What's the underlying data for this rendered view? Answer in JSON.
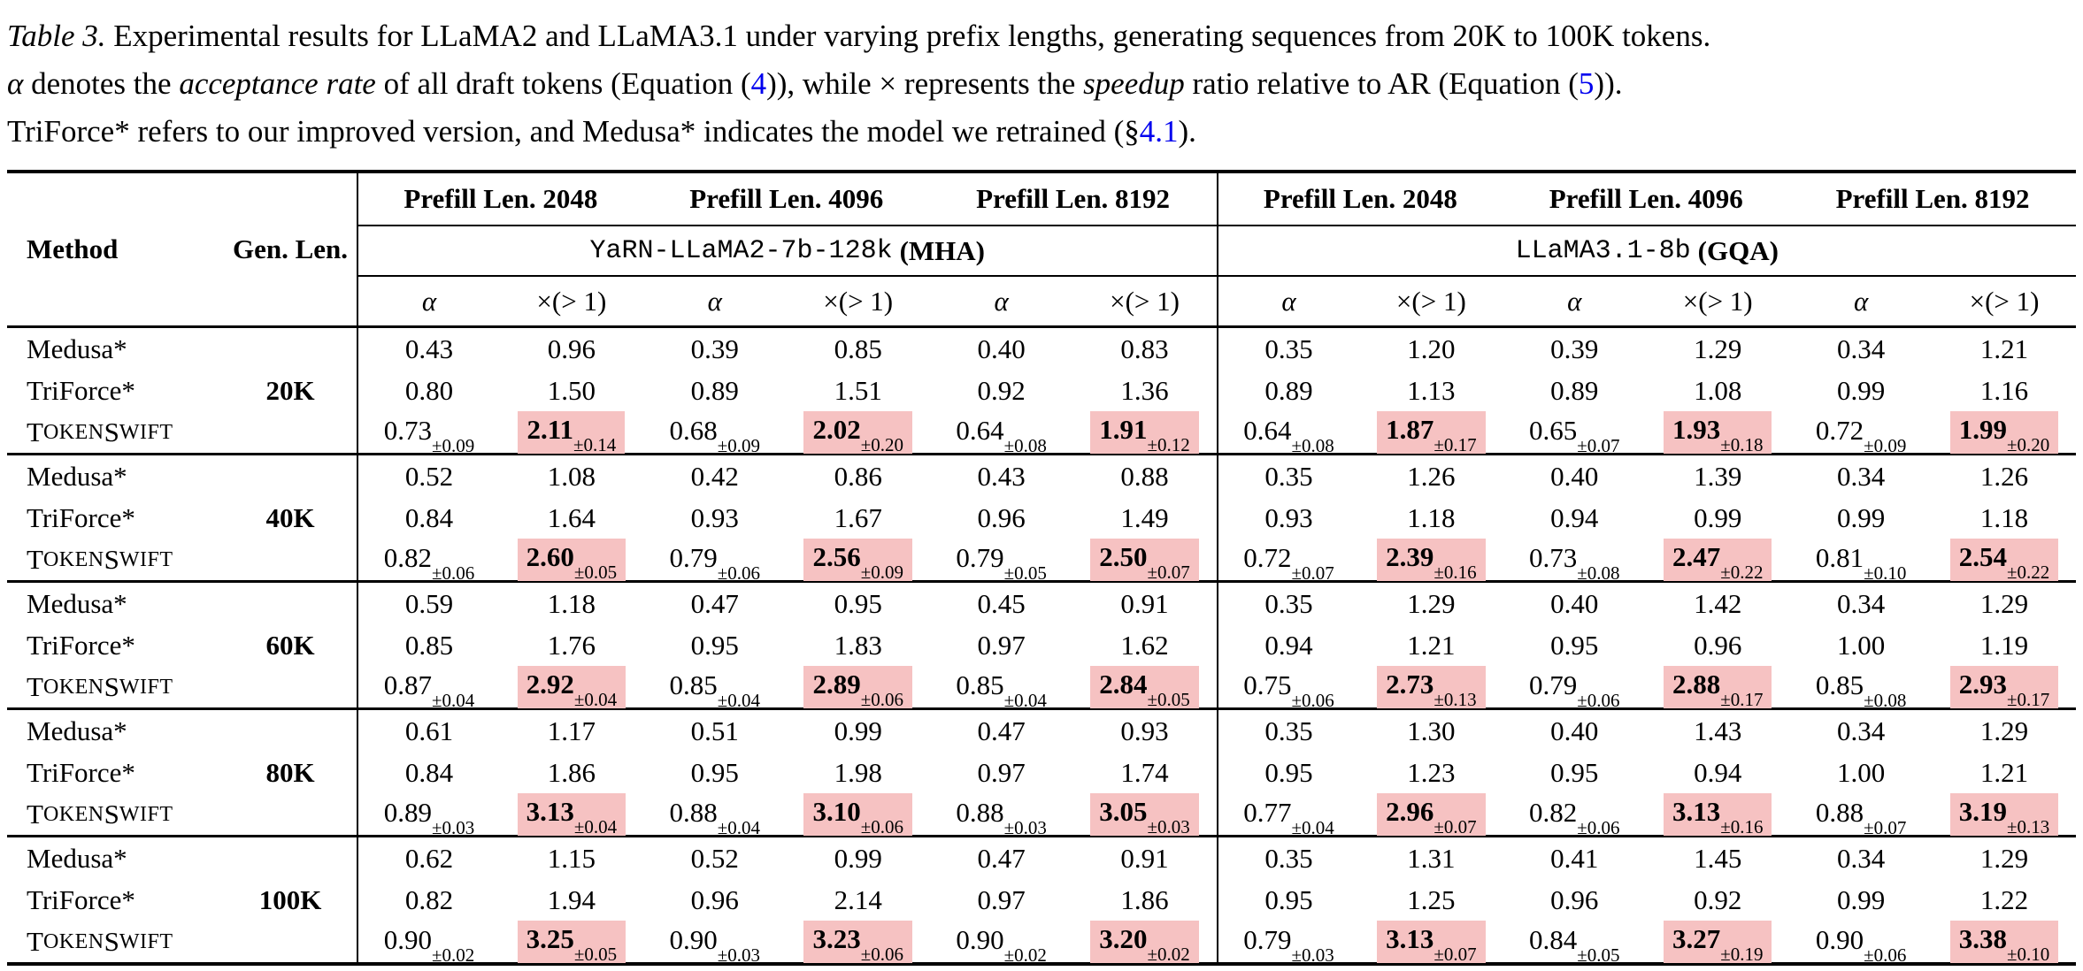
{
  "caption": {
    "lines": [
      [
        {
          "t": "Table 3.",
          "s": "i"
        },
        {
          "t": " Experimental results for LLaMA2 and LLaMA3.1 under varying prefix lengths, generating sequences from 20K to 100K tokens.",
          "s": "n"
        }
      ],
      [
        {
          "t": "α",
          "s": "i"
        },
        {
          "t": " denotes the ",
          "s": "n"
        },
        {
          "t": "acceptance rate",
          "s": "i"
        },
        {
          "t": " of all draft tokens (Equation (",
          "s": "n"
        },
        {
          "t": "4",
          "s": "l"
        },
        {
          "t": ")), while × represents the ",
          "s": "n"
        },
        {
          "t": "speedup",
          "s": "i"
        },
        {
          "t": " ratio relative to AR (Equation (",
          "s": "n"
        },
        {
          "t": "5",
          "s": "l"
        },
        {
          "t": ")).",
          "s": "n"
        }
      ],
      [
        {
          "t": "TriForce* refers to our improved version, and Medusa* indicates the model we retrained (§",
          "s": "n"
        },
        {
          "t": "4.1",
          "s": "l"
        },
        {
          "t": ").",
          "s": "n"
        }
      ]
    ]
  },
  "table": {
    "header": {
      "method": "Method",
      "gen_len": "Gen. Len.",
      "prefill": [
        "Prefill Len. 2048",
        "Prefill Len. 4096",
        "Prefill Len. 8192",
        "Prefill Len. 2048",
        "Prefill Len. 4096",
        "Prefill Len. 8192"
      ],
      "model_left": {
        "name": "YaRN-LLaMA2-7b-128k",
        "suffix": "(MHA)"
      },
      "model_right": {
        "name": "LLaMA3.1-8b",
        "suffix": "(GQA)"
      },
      "alpha": "α",
      "speedup": "×(> 1)"
    },
    "groups": [
      {
        "gen_len": "20K",
        "rows": [
          {
            "method": "Medusa*",
            "values": [
              "0.43",
              "0.96",
              "0.39",
              "0.85",
              "0.40",
              "0.83",
              "0.35",
              "1.20",
              "0.39",
              "1.29",
              "0.34",
              "1.21"
            ]
          },
          {
            "method": "TriForce*",
            "values": [
              "0.80",
              "1.50",
              "0.89",
              "1.51",
              "0.92",
              "1.36",
              "0.89",
              "1.13",
              "0.89",
              "1.08",
              "0.99",
              "1.16"
            ]
          },
          {
            "method": "TokenSwift",
            "sc": true,
            "values": [
              {
                "v": "0.73",
                "sub": "±0.09"
              },
              {
                "v": "2.11",
                "sub": "±0.14",
                "hl": true
              },
              {
                "v": "0.68",
                "sub": "±0.09"
              },
              {
                "v": "2.02",
                "sub": "±0.20",
                "hl": true
              },
              {
                "v": "0.64",
                "sub": "±0.08"
              },
              {
                "v": "1.91",
                "sub": "±0.12",
                "hl": true
              },
              {
                "v": "0.64",
                "sub": "±0.08"
              },
              {
                "v": "1.87",
                "sub": "±0.17",
                "hl": true
              },
              {
                "v": "0.65",
                "sub": "±0.07"
              },
              {
                "v": "1.93",
                "sub": "±0.18",
                "hl": true
              },
              {
                "v": "0.72",
                "sub": "±0.09"
              },
              {
                "v": "1.99",
                "sub": "±0.20",
                "hl": true
              }
            ]
          }
        ]
      },
      {
        "gen_len": "40K",
        "rows": [
          {
            "method": "Medusa*",
            "values": [
              "0.52",
              "1.08",
              "0.42",
              "0.86",
              "0.43",
              "0.88",
              "0.35",
              "1.26",
              "0.40",
              "1.39",
              "0.34",
              "1.26"
            ]
          },
          {
            "method": "TriForce*",
            "values": [
              "0.84",
              "1.64",
              "0.93",
              "1.67",
              "0.96",
              "1.49",
              "0.93",
              "1.18",
              "0.94",
              "0.99",
              "0.99",
              "1.18"
            ]
          },
          {
            "method": "TokenSwift",
            "sc": true,
            "values": [
              {
                "v": "0.82",
                "sub": "±0.06"
              },
              {
                "v": "2.60",
                "sub": "±0.05",
                "hl": true
              },
              {
                "v": "0.79",
                "sub": "±0.06"
              },
              {
                "v": "2.56",
                "sub": "±0.09",
                "hl": true
              },
              {
                "v": "0.79",
                "sub": "±0.05"
              },
              {
                "v": "2.50",
                "sub": "±0.07",
                "hl": true
              },
              {
                "v": "0.72",
                "sub": "±0.07"
              },
              {
                "v": "2.39",
                "sub": "±0.16",
                "hl": true
              },
              {
                "v": "0.73",
                "sub": "±0.08"
              },
              {
                "v": "2.47",
                "sub": "±0.22",
                "hl": true
              },
              {
                "v": "0.81",
                "sub": "±0.10"
              },
              {
                "v": "2.54",
                "sub": "±0.22",
                "hl": true
              }
            ]
          }
        ]
      },
      {
        "gen_len": "60K",
        "rows": [
          {
            "method": "Medusa*",
            "values": [
              "0.59",
              "1.18",
              "0.47",
              "0.95",
              "0.45",
              "0.91",
              "0.35",
              "1.29",
              "0.40",
              "1.42",
              "0.34",
              "1.29"
            ]
          },
          {
            "method": "TriForce*",
            "values": [
              "0.85",
              "1.76",
              "0.95",
              "1.83",
              "0.97",
              "1.62",
              "0.94",
              "1.21",
              "0.95",
              "0.96",
              "1.00",
              "1.19"
            ]
          },
          {
            "method": "TokenSwift",
            "sc": true,
            "values": [
              {
                "v": "0.87",
                "sub": "±0.04"
              },
              {
                "v": "2.92",
                "sub": "±0.04",
                "hl": true
              },
              {
                "v": "0.85",
                "sub": "±0.04"
              },
              {
                "v": "2.89",
                "sub": "±0.06",
                "hl": true
              },
              {
                "v": "0.85",
                "sub": "±0.04"
              },
              {
                "v": "2.84",
                "sub": "±0.05",
                "hl": true
              },
              {
                "v": "0.75",
                "sub": "±0.06"
              },
              {
                "v": "2.73",
                "sub": "±0.13",
                "hl": true
              },
              {
                "v": "0.79",
                "sub": "±0.06"
              },
              {
                "v": "2.88",
                "sub": "±0.17",
                "hl": true
              },
              {
                "v": "0.85",
                "sub": "±0.08"
              },
              {
                "v": "2.93",
                "sub": "±0.17",
                "hl": true
              }
            ]
          }
        ]
      },
      {
        "gen_len": "80K",
        "rows": [
          {
            "method": "Medusa*",
            "values": [
              "0.61",
              "1.17",
              "0.51",
              "0.99",
              "0.47",
              "0.93",
              "0.35",
              "1.30",
              "0.40",
              "1.43",
              "0.34",
              "1.29"
            ]
          },
          {
            "method": "TriForce*",
            "values": [
              "0.84",
              "1.86",
              "0.95",
              "1.98",
              "0.97",
              "1.74",
              "0.95",
              "1.23",
              "0.95",
              "0.94",
              "1.00",
              "1.21"
            ]
          },
          {
            "method": "TokenSwift",
            "sc": true,
            "values": [
              {
                "v": "0.89",
                "sub": "±0.03"
              },
              {
                "v": "3.13",
                "sub": "±0.04",
                "hl": true
              },
              {
                "v": "0.88",
                "sub": "±0.04"
              },
              {
                "v": "3.10",
                "sub": "±0.06",
                "hl": true
              },
              {
                "v": "0.88",
                "sub": "±0.03"
              },
              {
                "v": "3.05",
                "sub": "±0.03",
                "hl": true
              },
              {
                "v": "0.77",
                "sub": "±0.04"
              },
              {
                "v": "2.96",
                "sub": "±0.07",
                "hl": true
              },
              {
                "v": "0.82",
                "sub": "±0.06"
              },
              {
                "v": "3.13",
                "sub": "±0.16",
                "hl": true
              },
              {
                "v": "0.88",
                "sub": "±0.07"
              },
              {
                "v": "3.19",
                "sub": "±0.13",
                "hl": true
              }
            ]
          }
        ]
      },
      {
        "gen_len": "100K",
        "rows": [
          {
            "method": "Medusa*",
            "values": [
              "0.62",
              "1.15",
              "0.52",
              "0.99",
              "0.47",
              "0.91",
              "0.35",
              "1.31",
              "0.41",
              "1.45",
              "0.34",
              "1.29"
            ]
          },
          {
            "method": "TriForce*",
            "values": [
              "0.82",
              "1.94",
              "0.96",
              "2.14",
              "0.97",
              "1.86",
              "0.95",
              "1.25",
              "0.96",
              "0.92",
              "0.99",
              "1.22"
            ]
          },
          {
            "method": "TokenSwift",
            "sc": true,
            "values": [
              {
                "v": "0.90",
                "sub": "±0.02"
              },
              {
                "v": "3.25",
                "sub": "±0.05",
                "hl": true
              },
              {
                "v": "0.90",
                "sub": "±0.03"
              },
              {
                "v": "3.23",
                "sub": "±0.06",
                "hl": true
              },
              {
                "v": "0.90",
                "sub": "±0.02"
              },
              {
                "v": "3.20",
                "sub": "±0.02",
                "hl": true
              },
              {
                "v": "0.79",
                "sub": "±0.03"
              },
              {
                "v": "3.13",
                "sub": "±0.07",
                "hl": true
              },
              {
                "v": "0.84",
                "sub": "±0.05"
              },
              {
                "v": "3.27",
                "sub": "±0.19",
                "hl": true
              },
              {
                "v": "0.90",
                "sub": "±0.06"
              },
              {
                "v": "3.38",
                "sub": "±0.10",
                "hl": true
              }
            ]
          }
        ]
      }
    ],
    "colors": {
      "highlight": "#f6c2c2",
      "link": "#0000ee",
      "rule": "#000000"
    }
  }
}
